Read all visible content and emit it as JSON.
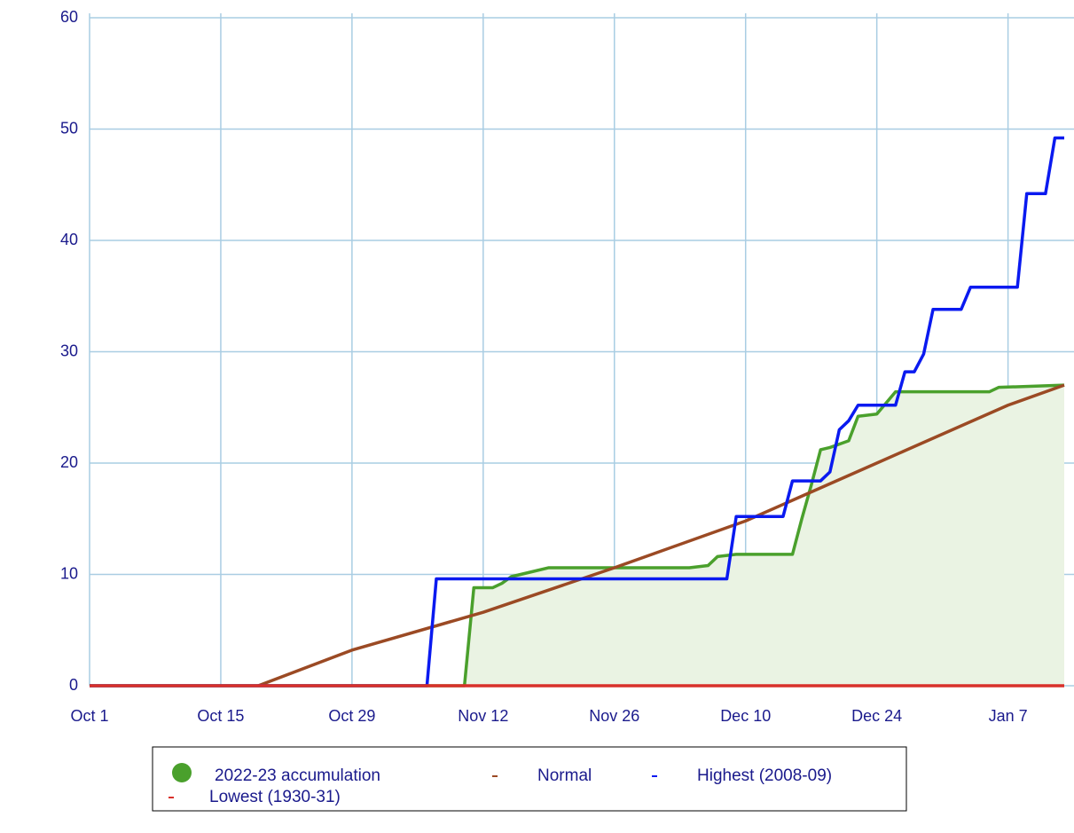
{
  "chart_data": {
    "type": "line",
    "xlim": [
      "Oct 1",
      "Jan 13"
    ],
    "xticks": [
      "Oct 1",
      "Oct 15",
      "Oct 29",
      "Nov 12",
      "Nov 26",
      "Dec 10",
      "Dec 24",
      "Jan 7"
    ],
    "ylim": [
      0,
      60
    ],
    "yticks": [
      0,
      10,
      20,
      30,
      40,
      50,
      60
    ],
    "grid": true,
    "series": [
      {
        "name": "2022-23 accumulation",
        "color": "#4aa02c",
        "fill": "#eaf3e3",
        "x": [
          "Oct 1",
          "Nov 10",
          "Nov 11",
          "Nov 13",
          "Nov 14",
          "Nov 15",
          "Nov 17",
          "Nov 19",
          "Dec 4",
          "Dec 6",
          "Dec 7",
          "Dec 9",
          "Dec 15",
          "Dec 16",
          "Dec 17",
          "Dec 18",
          "Dec 19",
          "Dec 21",
          "Dec 22",
          "Dec 24",
          "Dec 26",
          "Jan 5",
          "Jan 6",
          "Jan 13"
        ],
        "values": [
          0,
          0,
          8.8,
          8.8,
          9.2,
          9.8,
          10.2,
          10.6,
          10.6,
          10.8,
          11.6,
          11.8,
          11.8,
          15,
          18,
          21.2,
          21.4,
          22,
          24.2,
          24.4,
          26.4,
          26.4,
          26.8,
          27
        ]
      },
      {
        "name": "Normal",
        "color": "#9b4a24",
        "x": [
          "Oct 19",
          "Oct 29",
          "Nov 12",
          "Nov 26",
          "Dec 10",
          "Dec 24",
          "Jan 7",
          "Jan 13"
        ],
        "values": [
          0,
          3.2,
          6.6,
          10.6,
          14.8,
          20,
          25.2,
          27
        ]
      },
      {
        "name": "Highest (2008-09)",
        "color": "#0a1af0",
        "x": [
          "Oct 1",
          "Nov 6",
          "Nov 7",
          "Dec 8",
          "Dec 9",
          "Dec 14",
          "Dec 15",
          "Dec 18",
          "Dec 19",
          "Dec 20",
          "Dec 21",
          "Dec 22",
          "Dec 26",
          "Dec 27",
          "Dec 28",
          "Dec 29",
          "Dec 30",
          "Jan 2",
          "Jan 3",
          "Jan 8",
          "Jan 9",
          "Jan 11",
          "Jan 12",
          "Jan 13"
        ],
        "values": [
          0,
          0,
          9.6,
          9.6,
          15.2,
          15.2,
          18.4,
          18.4,
          19.2,
          23,
          23.8,
          25.2,
          25.2,
          28.2,
          28.2,
          29.8,
          33.8,
          33.8,
          35.8,
          35.8,
          44.2,
          44.2,
          49.2,
          49.2
        ]
      },
      {
        "name": "Lowest (1930-31)",
        "color": "#d9302a",
        "x": [
          "Oct 1",
          "Jan 13"
        ],
        "values": [
          0,
          0
        ]
      }
    ]
  }
}
